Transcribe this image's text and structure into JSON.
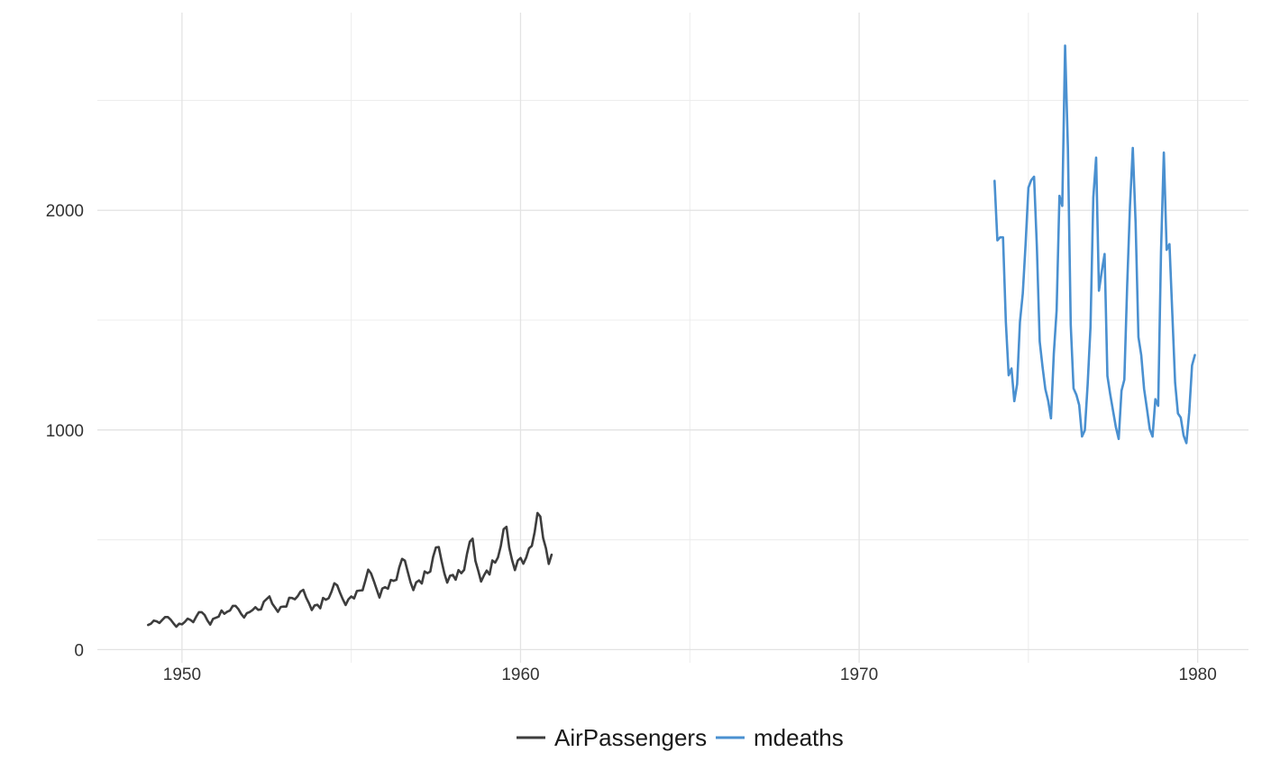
{
  "chart_data": {
    "type": "line",
    "title": "",
    "xlabel": "",
    "ylabel": "",
    "xlim": [
      1947.5,
      1981.5
    ],
    "ylim": [
      -60,
      2900
    ],
    "x_ticks": [
      1950,
      1960,
      1970,
      1980
    ],
    "x_tick_labels": [
      "1950",
      "1960",
      "1970",
      "1980"
    ],
    "x_minor": [
      1955,
      1965,
      1975
    ],
    "y_ticks": [
      0,
      1000,
      2000
    ],
    "y_tick_labels": [
      "0",
      "1000",
      "2000"
    ],
    "y_minor": [
      500,
      1500,
      2500
    ],
    "grid": true,
    "legend_position": "bottom",
    "series": [
      {
        "name": "AirPassengers",
        "color": "#3d3d3d",
        "start": 1949,
        "frequency": 12,
        "values": [
          112,
          118,
          132,
          129,
          121,
          135,
          148,
          148,
          136,
          119,
          104,
          118,
          115,
          126,
          141,
          135,
          125,
          149,
          170,
          170,
          158,
          133,
          114,
          140,
          145,
          150,
          178,
          163,
          172,
          178,
          199,
          199,
          184,
          162,
          146,
          166,
          171,
          180,
          193,
          181,
          183,
          218,
          230,
          242,
          209,
          191,
          172,
          194,
          196,
          196,
          236,
          235,
          229,
          243,
          264,
          272,
          237,
          211,
          180,
          201,
          204,
          188,
          235,
          227,
          234,
          264,
          302,
          293,
          259,
          229,
          203,
          229,
          242,
          233,
          267,
          269,
          270,
          315,
          364,
          347,
          312,
          274,
          237,
          278,
          284,
          277,
          317,
          313,
          318,
          374,
          413,
          405,
          355,
          306,
          271,
          306,
          315,
          301,
          356,
          348,
          355,
          422,
          465,
          467,
          404,
          347,
          305,
          336,
          340,
          318,
          362,
          348,
          363,
          435,
          491,
          505,
          404,
          359,
          310,
          337,
          360,
          342,
          406,
          396,
          420,
          472,
          548,
          559,
          463,
          407,
          362,
          405,
          417,
          391,
          419,
          461,
          472,
          535,
          622,
          606,
          508,
          461,
          390,
          432
        ]
      },
      {
        "name": "mdeaths",
        "color": "#4a90d0",
        "start": 1974,
        "frequency": 12,
        "values": [
          2134,
          1863,
          1877,
          1877,
          1492,
          1249,
          1280,
          1131,
          1209,
          1492,
          1621,
          1846,
          2103,
          2137,
          2153,
          1833,
          1403,
          1288,
          1186,
          1133,
          1053,
          1347,
          1545,
          2066,
          2020,
          2750,
          2283,
          1479,
          1189,
          1160,
          1113,
          970,
          999,
          1208,
          1467,
          2059,
          2240,
          1634,
          1722,
          1801,
          1246,
          1162,
          1087,
          1013,
          959,
          1179,
          1229,
          1655,
          2019,
          2284,
          1942,
          1423,
          1340,
          1187,
          1098,
          1004,
          970,
          1140,
          1110,
          1812,
          2263,
          1820,
          1846,
          1531,
          1215,
          1075,
          1056,
          975,
          940,
          1081,
          1294,
          1341
        ]
      }
    ]
  }
}
